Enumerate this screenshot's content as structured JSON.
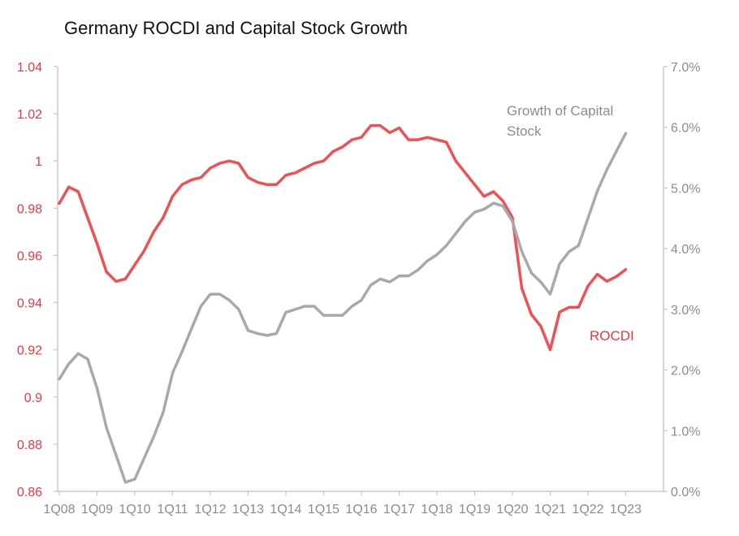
{
  "chart_data": {
    "type": "line",
    "title": "Germany ROCDI and Capital Stock Growth",
    "xlabel": "",
    "ylabel_left": "",
    "ylabel_right": "",
    "x_tick_labels": [
      "1Q08",
      "1Q09",
      "1Q10",
      "1Q11",
      "1Q12",
      "1Q13",
      "1Q14",
      "1Q15",
      "1Q16",
      "1Q17",
      "1Q18",
      "1Q19",
      "1Q20",
      "1Q21",
      "1Q22",
      "1Q23"
    ],
    "y_left_ticks": [
      "0.86",
      "0.88",
      "0.9",
      "0.92",
      "0.94",
      "0.96",
      "0.98",
      "1",
      "1.02",
      "1.04"
    ],
    "y_left_range": [
      0.86,
      1.04
    ],
    "y_right_ticks": [
      "0.0%",
      "1.0%",
      "2.0%",
      "3.0%",
      "4.0%",
      "5.0%",
      "6.0%",
      "7.0%"
    ],
    "y_right_range": [
      0.0,
      7.0
    ],
    "grid": false,
    "series": [
      {
        "name": "ROCDI",
        "label": "ROCDI",
        "axis": "left",
        "color": "#ef5054",
        "x": [
          0,
          0.25,
          0.5,
          0.75,
          1,
          1.25,
          1.5,
          1.75,
          2,
          2.25,
          2.5,
          2.75,
          3,
          3.25,
          3.5,
          3.75,
          4,
          4.25,
          4.5,
          4.75,
          5,
          5.25,
          5.5,
          5.75,
          6,
          6.25,
          6.5,
          6.75,
          7,
          7.25,
          7.5,
          7.75,
          8,
          8.25,
          8.5,
          8.75,
          9,
          9.25,
          9.5,
          9.75,
          10,
          10.25,
          10.5,
          10.75,
          11,
          11.25,
          11.5,
          11.75,
          12,
          12.25,
          12.5,
          12.75,
          13,
          13.25,
          13.5,
          13.75,
          14,
          14.25,
          14.5,
          14.75,
          15
        ],
        "values": [
          0.982,
          0.989,
          0.987,
          0.976,
          0.965,
          0.953,
          0.949,
          0.95,
          0.956,
          0.962,
          0.97,
          0.976,
          0.985,
          0.99,
          0.992,
          0.993,
          0.997,
          0.999,
          1.0,
          0.999,
          0.993,
          0.991,
          0.99,
          0.99,
          0.994,
          0.995,
          0.997,
          0.999,
          1.0,
          1.004,
          1.006,
          1.009,
          1.01,
          1.015,
          1.015,
          1.012,
          1.014,
          1.009,
          1.009,
          1.01,
          1.009,
          1.008,
          1.0,
          0.995,
          0.99,
          0.985,
          0.987,
          0.983,
          0.976,
          0.946,
          0.935,
          0.93,
          0.92,
          0.936,
          0.938,
          0.938,
          0.947,
          0.952,
          0.949,
          0.951,
          0.954
        ]
      },
      {
        "name": "Growth of Capital Stock",
        "label": "Growth of Capital Stock",
        "axis": "right",
        "color": "#a9a9a9",
        "x": [
          0,
          0.25,
          0.5,
          0.75,
          1,
          1.25,
          1.5,
          1.75,
          2,
          2.25,
          2.5,
          2.75,
          3,
          3.25,
          3.5,
          3.75,
          4,
          4.25,
          4.5,
          4.75,
          5,
          5.25,
          5.5,
          5.75,
          6,
          6.25,
          6.5,
          6.75,
          7,
          7.25,
          7.5,
          7.75,
          8,
          8.25,
          8.5,
          8.75,
          9,
          9.25,
          9.5,
          9.75,
          10,
          10.25,
          10.5,
          10.75,
          11,
          11.25,
          11.5,
          11.75,
          12,
          12.25,
          12.5,
          12.75,
          13,
          13.25,
          13.5,
          13.75,
          14,
          14.25,
          14.5,
          14.75,
          15
        ],
        "values": [
          1.85,
          2.1,
          2.27,
          2.18,
          1.7,
          1.05,
          0.6,
          0.15,
          0.2,
          0.55,
          0.9,
          1.3,
          1.95,
          2.3,
          2.68,
          3.05,
          3.25,
          3.25,
          3.15,
          3.0,
          2.65,
          2.6,
          2.57,
          2.6,
          2.95,
          3.0,
          3.05,
          3.05,
          2.9,
          2.9,
          2.9,
          3.05,
          3.15,
          3.4,
          3.5,
          3.45,
          3.55,
          3.55,
          3.65,
          3.8,
          3.9,
          4.05,
          4.25,
          4.45,
          4.6,
          4.65,
          4.75,
          4.7,
          4.45,
          3.95,
          3.6,
          3.45,
          3.25,
          3.75,
          3.95,
          4.05,
          4.5,
          4.95,
          5.3,
          5.6,
          5.9
        ]
      }
    ]
  }
}
